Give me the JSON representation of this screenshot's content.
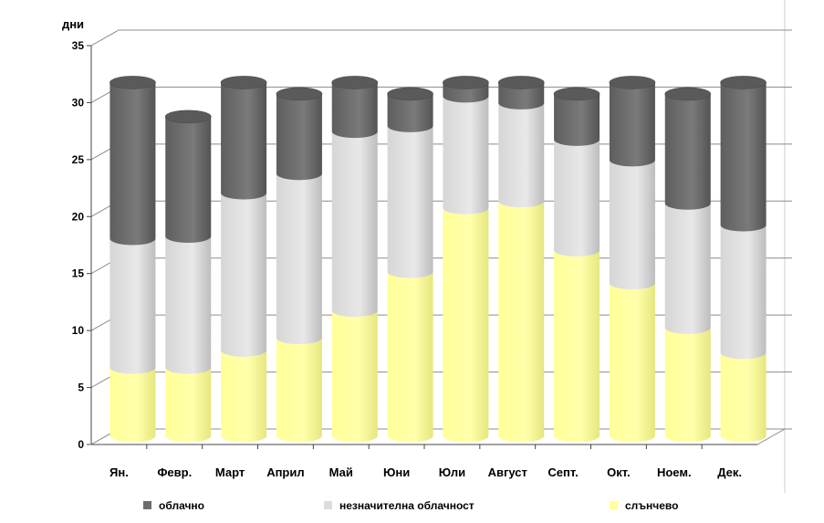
{
  "chart_data": {
    "type": "bar",
    "stacked": true,
    "three_d": true,
    "title": "",
    "xlabel": "",
    "ylabel": "дни",
    "ylim": [
      0,
      35
    ],
    "yticks": [
      "0",
      "5",
      "10",
      "15",
      "20",
      "25",
      "30",
      "35"
    ],
    "grid": true,
    "legend_position": "bottom",
    "categories": [
      "Ян.",
      "Февр.",
      "Март",
      "Април",
      "Май",
      "Юни",
      "Юли",
      "Август",
      "Септ.",
      "Окт.",
      "Ноем.",
      "Дек."
    ],
    "series": [
      {
        "name": "слънчево",
        "color": "#ffff99",
        "values": [
          6,
          6,
          7.5,
          8.6,
          11,
          14.4,
          20,
          20.6,
          16.3,
          13.4,
          9.5,
          7.3
        ]
      },
      {
        "name": "незначителна облачност",
        "color": "#dcdcdc",
        "values": [
          11.3,
          11.5,
          13.8,
          14.4,
          15.7,
          12.8,
          9.8,
          8.6,
          9.7,
          10.8,
          10.9,
          11.2
        ]
      },
      {
        "name": "облачно",
        "color": "#6e6e6e",
        "values": [
          13.7,
          10.5,
          9.7,
          7.0,
          4.3,
          2.8,
          1.2,
          1.8,
          4.0,
          6.8,
          9.6,
          12.5
        ]
      }
    ],
    "legend_order": [
      "облачно",
      "незначителна облачност",
      "слънчево"
    ]
  }
}
